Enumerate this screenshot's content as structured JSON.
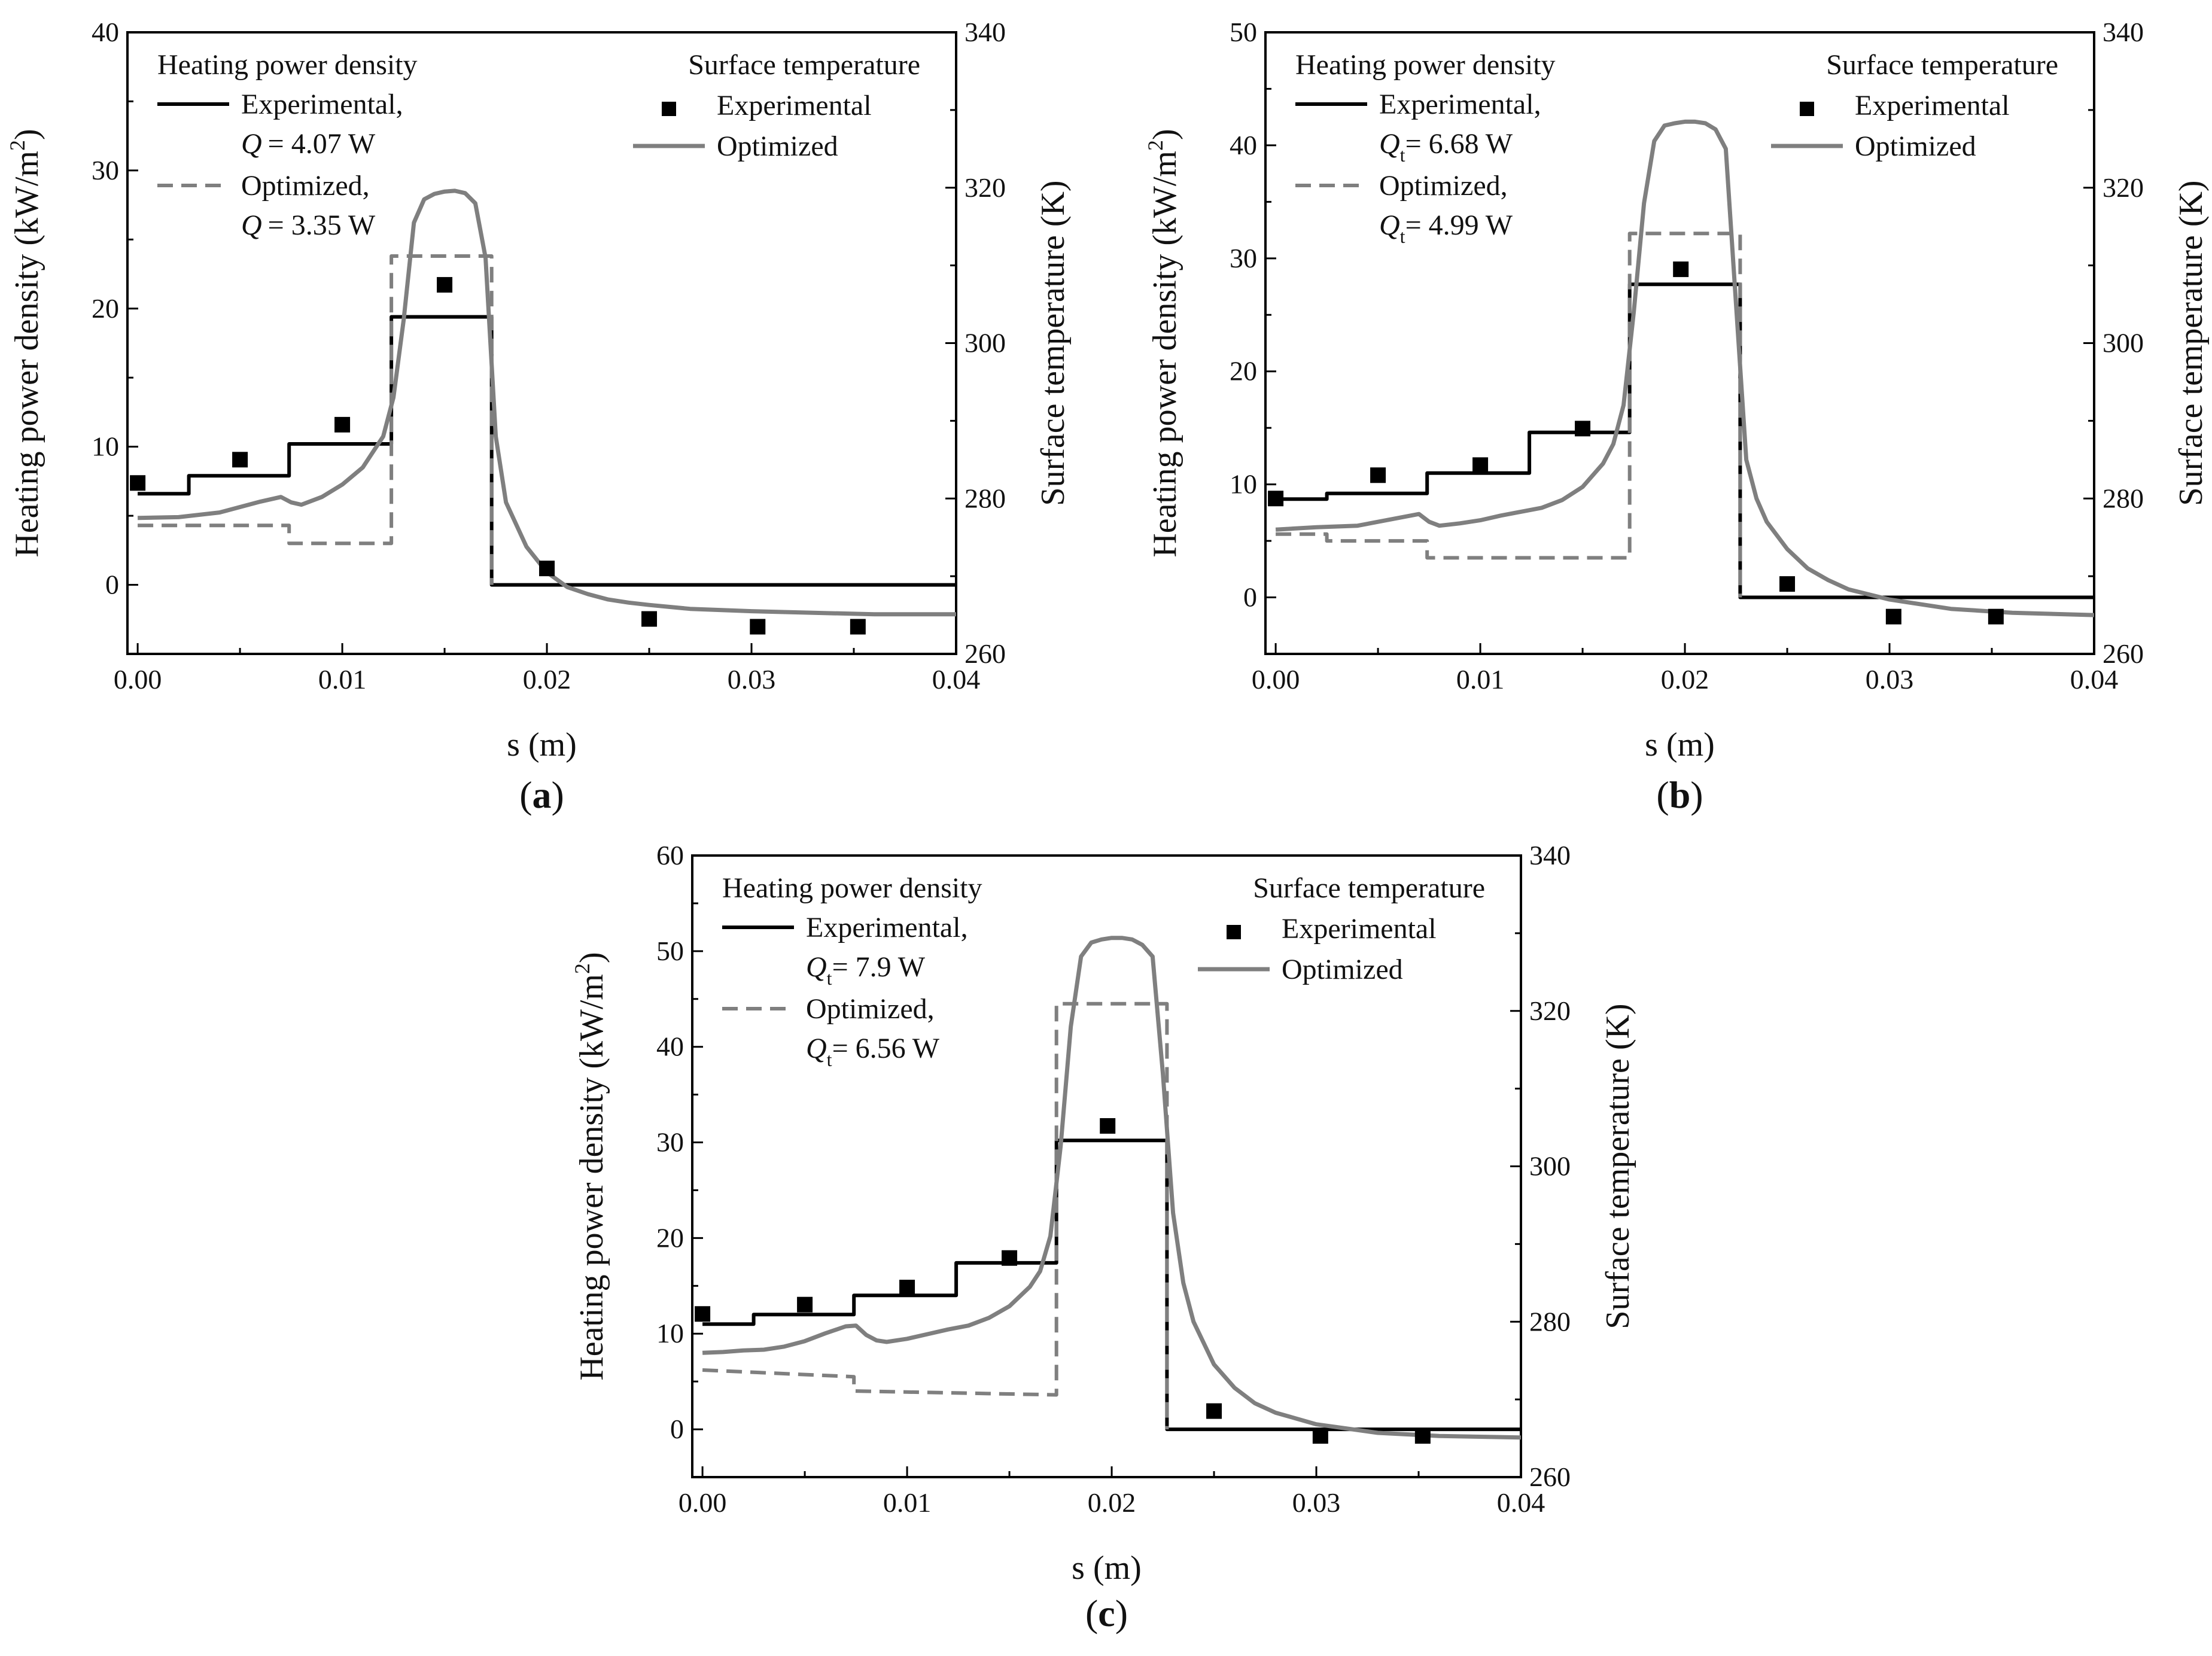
{
  "figure": {
    "colors": {
      "axis": "#000000",
      "experimental": "#000000",
      "optimized": "#7f7f7f",
      "text": "#111111"
    }
  },
  "chart_data": [
    {
      "type": "line",
      "panel_label": "a",
      "xlabel": "s (m)",
      "ylabel": "Heating power density (kW/m²)",
      "ylabel_base": "Heating power density (kW/m",
      "ylabel_sup": "2",
      "ylabel_close": ")",
      "y2label": "Surface temperature (K)",
      "xlim": [
        -0.0005,
        0.04
      ],
      "ylim": [
        -5,
        40
      ],
      "y2lim": [
        260,
        340
      ],
      "xticks": [
        0,
        0.01,
        0.02,
        0.03,
        0.04
      ],
      "xtick_labels": [
        "0.00",
        "0.01",
        "0.02",
        "0.03",
        "0.04"
      ],
      "yticks": [
        0,
        10,
        20,
        30,
        40
      ],
      "ytick_labels": [
        "0",
        "10",
        "20",
        "30",
        "40"
      ],
      "y2ticks": [
        260,
        280,
        300,
        320,
        340
      ],
      "y2tick_labels": [
        "260",
        "280",
        "300",
        "320",
        "340"
      ],
      "legend": {
        "left_title": "Heating power density",
        "right_title": "Surface temperature",
        "power_experimental": {
          "label": "Experimental,",
          "q_symbol": "Q",
          "q_sub": "",
          "q_value": "= 4.07 W"
        },
        "power_optimized": {
          "label": "Optimized,",
          "q_symbol": "Q",
          "q_sub": "",
          "q_value": "= 3.35 W"
        },
        "temp_experimental": "Experimental",
        "temp_optimized": "Optimized"
      },
      "series": [
        {
          "name": "Heating power density – Experimental",
          "axis": "left",
          "style": "step-solid",
          "x": [
            0,
            0.0025,
            0.0025,
            0.0074,
            0.0074,
            0.0124,
            0.0124,
            0.0173,
            0.0173,
            0.04
          ],
          "y": [
            6.6,
            6.6,
            7.9,
            7.9,
            10.2,
            10.2,
            19.4,
            19.4,
            0,
            0
          ]
        },
        {
          "name": "Heating power density – Optimized",
          "axis": "left",
          "style": "step-dashed",
          "x": [
            0,
            0.0074,
            0.0074,
            0.0124,
            0.0124,
            0.0173,
            0.0173
          ],
          "y": [
            4.3,
            4.3,
            3.0,
            3.0,
            23.8,
            23.8,
            0
          ]
        },
        {
          "name": "Surface temperature – Optimized",
          "axis": "right",
          "style": "smooth-gray",
          "x": [
            0,
            0.002,
            0.004,
            0.006,
            0.007,
            0.0075,
            0.008,
            0.009,
            0.01,
            0.011,
            0.012,
            0.0125,
            0.013,
            0.0135,
            0.014,
            0.0145,
            0.015,
            0.0155,
            0.016,
            0.0165,
            0.017,
            0.0175,
            0.018,
            0.019,
            0.02,
            0.021,
            0.022,
            0.023,
            0.024,
            0.025,
            0.027,
            0.03,
            0.033,
            0.036,
            0.04
          ],
          "y": [
            277.5,
            277.6,
            278.2,
            279.6,
            280.2,
            279.5,
            279.2,
            280.2,
            281.8,
            284.0,
            288.0,
            293.0,
            303.0,
            315.5,
            318.5,
            319.2,
            319.5,
            319.6,
            319.3,
            318.0,
            311.0,
            288.0,
            279.5,
            273.8,
            270.5,
            268.6,
            267.7,
            267.0,
            266.6,
            266.3,
            265.8,
            265.5,
            265.3,
            265.1,
            265.1
          ]
        },
        {
          "name": "Surface temperature – Experimental",
          "axis": "right",
          "style": "markers",
          "x": [
            0,
            0.005,
            0.01,
            0.015,
            0.02,
            0.025,
            0.0303,
            0.0352
          ],
          "y": [
            282.0,
            285.0,
            289.5,
            307.5,
            271.0,
            264.5,
            263.5,
            263.5
          ]
        }
      ]
    },
    {
      "type": "line",
      "panel_label": "b",
      "xlabel": "s (m)",
      "ylabel": "Heating power density (kW/m²)",
      "ylabel_base": "Heating power density (kW/m",
      "ylabel_sup": "2",
      "ylabel_close": ")",
      "y2label": "Surface temperature (K)",
      "xlim": [
        -0.0005,
        0.04
      ],
      "ylim": [
        -5,
        50
      ],
      "y2lim": [
        260,
        340
      ],
      "xticks": [
        0,
        0.01,
        0.02,
        0.03,
        0.04
      ],
      "xtick_labels": [
        "0.00",
        "0.01",
        "0.02",
        "0.03",
        "0.04"
      ],
      "yticks": [
        0,
        10,
        20,
        30,
        40,
        50
      ],
      "ytick_labels": [
        "0",
        "10",
        "20",
        "30",
        "40",
        "50"
      ],
      "y2ticks": [
        260,
        280,
        300,
        320,
        340
      ],
      "y2tick_labels": [
        "260",
        "280",
        "300",
        "320",
        "340"
      ],
      "legend": {
        "left_title": "Heating power density",
        "right_title": "Surface temperature",
        "power_experimental": {
          "label": "Experimental,",
          "q_symbol": "Q",
          "q_sub": "t",
          "q_value": "= 6.68 W"
        },
        "power_optimized": {
          "label": "Optimized,",
          "q_symbol": "Q",
          "q_sub": "t",
          "q_value": "= 4.99 W"
        },
        "temp_experimental": "Experimental",
        "temp_optimized": "Optimized"
      },
      "series": [
        {
          "name": "Heating power density – Experimental",
          "axis": "left",
          "style": "step-solid",
          "x": [
            0,
            0.0025,
            0.0025,
            0.0074,
            0.0074,
            0.0124,
            0.0124,
            0.0173,
            0.0173,
            0.0227,
            0.0227,
            0.04
          ],
          "y": [
            8.7,
            8.7,
            9.2,
            9.2,
            11.0,
            11.0,
            14.6,
            14.6,
            27.7,
            27.7,
            0,
            0
          ]
        },
        {
          "name": "Heating power density – Optimized",
          "axis": "left",
          "style": "step-dashed",
          "x": [
            0,
            0.0025,
            0.0025,
            0.0074,
            0.0074,
            0.0173,
            0.0173,
            0.0227,
            0.0227
          ],
          "y": [
            5.6,
            5.6,
            5.0,
            5.0,
            3.5,
            3.5,
            32.2,
            32.2,
            0
          ]
        },
        {
          "name": "Surface temperature – Optimized",
          "axis": "right",
          "style": "smooth-gray",
          "x": [
            0,
            0.002,
            0.004,
            0.006,
            0.007,
            0.0075,
            0.008,
            0.009,
            0.01,
            0.011,
            0.012,
            0.013,
            0.014,
            0.015,
            0.016,
            0.0165,
            0.017,
            0.0175,
            0.018,
            0.0185,
            0.019,
            0.0195,
            0.02,
            0.0205,
            0.021,
            0.0215,
            0.022,
            0.0225,
            0.023,
            0.0235,
            0.024,
            0.025,
            0.026,
            0.027,
            0.028,
            0.03,
            0.033,
            0.036,
            0.04
          ],
          "y": [
            276.0,
            276.3,
            276.5,
            277.5,
            278.0,
            277.0,
            276.5,
            276.8,
            277.2,
            277.8,
            278.3,
            278.8,
            279.8,
            281.5,
            284.5,
            287.0,
            292.0,
            304.0,
            318.0,
            326.0,
            328.0,
            328.3,
            328.5,
            328.5,
            328.3,
            327.5,
            325.0,
            305.0,
            285.0,
            280.0,
            277.0,
            273.5,
            271.0,
            269.5,
            268.3,
            267.0,
            265.8,
            265.3,
            265.0
          ]
        },
        {
          "name": "Surface temperature – Experimental",
          "axis": "right",
          "style": "markers",
          "x": [
            0,
            0.005,
            0.01,
            0.015,
            0.0198,
            0.025,
            0.0302,
            0.0352
          ],
          "y": [
            280.0,
            283.0,
            284.3,
            289.0,
            309.5,
            269.0,
            264.8,
            264.8
          ]
        }
      ]
    },
    {
      "type": "line",
      "panel_label": "c",
      "xlabel": "s (m)",
      "ylabel": "Heating power density (kW/m²)",
      "ylabel_base": "Heating power density (kW/m",
      "ylabel_sup": "2",
      "ylabel_close": ")",
      "y2label": "Surface temperature (K)",
      "xlim": [
        -0.0005,
        0.04
      ],
      "ylim": [
        -5,
        60
      ],
      "y2lim": [
        260,
        340
      ],
      "xticks": [
        0,
        0.01,
        0.02,
        0.03,
        0.04
      ],
      "xtick_labels": [
        "0.00",
        "0.01",
        "0.02",
        "0.03",
        "0.04"
      ],
      "yticks": [
        0,
        10,
        20,
        30,
        40,
        50,
        60
      ],
      "ytick_labels": [
        "0",
        "10",
        "20",
        "30",
        "40",
        "50",
        "60"
      ],
      "y2ticks": [
        260,
        280,
        300,
        320,
        340
      ],
      "y2tick_labels": [
        "260",
        "280",
        "300",
        "320",
        "340"
      ],
      "legend": {
        "left_title": "Heating power density",
        "right_title": "Surface temperature",
        "power_experimental": {
          "label": "Experimental,",
          "q_symbol": "Q",
          "q_sub": "t",
          "q_value": "= 7.9 W"
        },
        "power_optimized": {
          "label": "Optimized,",
          "q_symbol": "Q",
          "q_sub": "t",
          "q_value": "= 6.56 W"
        },
        "temp_experimental": "Experimental",
        "temp_optimized": "Optimized"
      },
      "series": [
        {
          "name": "Heating power density – Experimental",
          "axis": "left",
          "style": "step-solid",
          "x": [
            0,
            0.0025,
            0.0025,
            0.0074,
            0.0074,
            0.0124,
            0.0124,
            0.0173,
            0.0173,
            0.0227,
            0.0227,
            0.04
          ],
          "y": [
            11.0,
            11.0,
            12.0,
            12.0,
            14.0,
            14.0,
            17.4,
            17.4,
            30.2,
            30.2,
            0,
            0
          ]
        },
        {
          "name": "Heating power density – Optimized",
          "axis": "left",
          "style": "step-dashed",
          "x": [
            0,
            0.0074,
            0.0074,
            0.0173,
            0.0173,
            0.0227,
            0.0227
          ],
          "y": [
            6.2,
            5.5,
            4.0,
            3.6,
            44.5,
            44.5,
            0
          ]
        },
        {
          "name": "Surface temperature – Optimized",
          "axis": "right",
          "style": "smooth-gray",
          "x": [
            0,
            0.001,
            0.002,
            0.003,
            0.004,
            0.005,
            0.006,
            0.007,
            0.0075,
            0.008,
            0.0085,
            0.009,
            0.01,
            0.011,
            0.012,
            0.013,
            0.014,
            0.015,
            0.016,
            0.0165,
            0.017,
            0.0175,
            0.018,
            0.0185,
            0.019,
            0.0195,
            0.02,
            0.0205,
            0.021,
            0.0215,
            0.022,
            0.0225,
            0.023,
            0.0235,
            0.024,
            0.025,
            0.026,
            0.027,
            0.028,
            0.03,
            0.033,
            0.036,
            0.04
          ],
          "y": [
            276.0,
            276.1,
            276.3,
            276.4,
            276.8,
            277.5,
            278.5,
            279.4,
            279.5,
            278.3,
            277.6,
            277.4,
            277.8,
            278.4,
            279.0,
            279.5,
            280.5,
            282.0,
            284.5,
            286.5,
            291.0,
            302.5,
            318.0,
            327.0,
            328.8,
            329.2,
            329.4,
            329.4,
            329.2,
            328.5,
            327.0,
            312.0,
            294.0,
            285.0,
            280.0,
            274.5,
            271.5,
            269.5,
            268.3,
            266.8,
            265.7,
            265.3,
            265.1
          ]
        },
        {
          "name": "Surface temperature – Experimental",
          "axis": "right",
          "style": "markers",
          "x": [
            0,
            0.005,
            0.01,
            0.015,
            0.0198,
            0.025,
            0.0302,
            0.0352
          ],
          "y": [
            281.0,
            282.2,
            284.4,
            288.2,
            305.2,
            268.5,
            265.3,
            265.3
          ]
        }
      ]
    }
  ]
}
